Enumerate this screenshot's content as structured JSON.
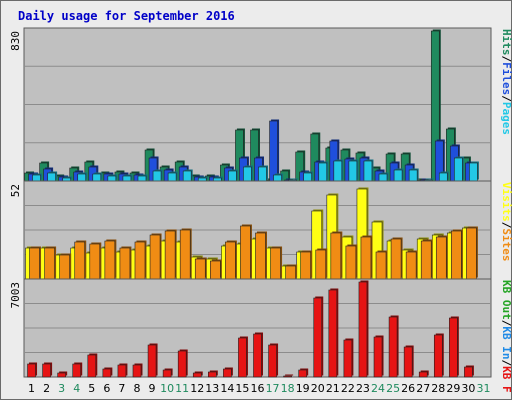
{
  "title": "Daily usage for September 2016",
  "colors": {
    "title": "#0000c8",
    "hits": "#1f8a5e",
    "files": "#1f4fdc",
    "pages": "#22c8e6",
    "visits": "#ffff14",
    "sites": "#f08c14",
    "kbin": "#1f8ae6",
    "kbout": "#24a424",
    "kbf": "#e61414",
    "panel_bg": "#c0c0c0",
    "grid": "#8c8c8c",
    "weekday": "#000000",
    "weekend": "#1f8a5e"
  },
  "chart_data": {
    "type": "bar",
    "title": "Daily usage for September 2016",
    "days": [
      "1",
      "2",
      "3",
      "4",
      "5",
      "6",
      "7",
      "8",
      "9",
      "10",
      "11",
      "12",
      "13",
      "14",
      "15",
      "16",
      "17",
      "18",
      "19",
      "20",
      "21",
      "22",
      "23",
      "24",
      "25",
      "26",
      "27",
      "28",
      "29",
      "30",
      "31"
    ],
    "weekend_days": [
      "3",
      "4",
      "10",
      "11",
      "17",
      "18",
      "24",
      "25",
      "31"
    ],
    "panels": [
      {
        "scale_label": "830",
        "ylim": [
          0,
          830
        ],
        "legend": [
          {
            "text": "Pages",
            "color_key": "pages"
          },
          {
            "text": "/",
            "color_key": "weekday"
          },
          {
            "text": "Files",
            "color_key": "files"
          },
          {
            "text": "/",
            "color_key": "weekday"
          },
          {
            "text": "Hits",
            "color_key": "hits"
          }
        ],
        "series": [
          {
            "name": "Hits",
            "color_key": "hits",
            "values": [
              45,
              100,
              30,
              70,
              105,
              45,
              50,
              45,
              170,
              75,
              105,
              25,
              25,
              90,
              280,
              280,
              6,
              55,
              160,
              260,
              180,
              170,
              155,
              70,
              150,
              150,
              6,
              830,
              290,
              130,
              0
            ]
          },
          {
            "name": "Files",
            "color_key": "files",
            "values": [
              40,
              65,
              20,
              50,
              80,
              40,
              40,
              35,
              130,
              60,
              80,
              20,
              20,
              70,
              130,
              130,
              330,
              5,
              50,
              105,
              220,
              120,
              130,
              55,
              100,
              90,
              5,
              220,
              195,
              100,
              0
            ]
          },
          {
            "name": "Pages",
            "color_key": "pages",
            "values": [
              35,
              45,
              15,
              40,
              40,
              30,
              25,
              25,
              55,
              45,
              55,
              15,
              15,
              55,
              75,
              75,
              35,
              3,
              45,
              100,
              110,
              110,
              110,
              40,
              60,
              60,
              3,
              45,
              130,
              100,
              0
            ]
          }
        ]
      },
      {
        "scale_label": "52",
        "ylim": [
          0,
          52
        ],
        "legend": [
          {
            "text": "Sites",
            "color_key": "sites"
          },
          {
            "text": "/",
            "color_key": "weekday"
          },
          {
            "text": "Visits",
            "color_key": "visits"
          }
        ],
        "series": [
          {
            "name": "Visits",
            "color_key": "visits",
            "values": [
              17,
              17,
              13,
              17,
              14,
              17,
              15,
              16,
              18,
              21,
              20,
              12,
              11,
              18,
              19,
              22,
              17,
              7,
              15,
              37,
              46,
              23,
              49,
              31,
              21,
              16,
              22,
              24,
              25,
              28,
              0
            ]
          },
          {
            "name": "Sites",
            "color_key": "sites",
            "values": [
              17,
              17,
              13,
              20,
              19,
              21,
              17,
              20,
              24,
              26,
              27,
              11,
              10,
              20,
              29,
              25,
              17,
              7,
              15,
              16,
              25,
              18,
              23,
              15,
              22,
              15,
              21,
              23,
              26,
              28,
              0
            ]
          }
        ]
      },
      {
        "scale_label": "7003",
        "ylim": [
          0,
          7003
        ],
        "legend": [
          {
            "text": "KB F",
            "color_key": "kbf"
          },
          {
            "text": "/",
            "color_key": "weekday"
          },
          {
            "text": "KB In",
            "color_key": "kbin"
          },
          {
            "text": "/",
            "color_key": "weekday"
          },
          {
            "text": "KB Out",
            "color_key": "kbout"
          }
        ],
        "series": [
          {
            "name": "KB F",
            "color_key": "kbf",
            "values": [
              950,
              950,
              320,
              950,
              1650,
              600,
              900,
              900,
              2350,
              500,
              1900,
              300,
              350,
              600,
              2850,
              3200,
              2350,
              30,
              500,
              5800,
              6400,
              2750,
              7003,
              2950,
              4450,
              2200,
              370,
              3100,
              4350,
              750,
              0
            ]
          }
        ]
      }
    ]
  }
}
